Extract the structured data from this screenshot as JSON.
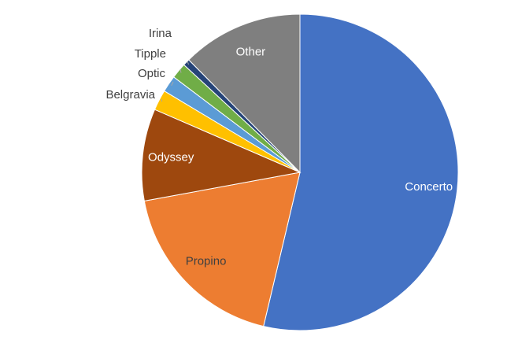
{
  "chart_data": {
    "type": "pie",
    "categories": [
      "Concerto",
      "Propino",
      "Odyssey",
      "Belgravia",
      "Optic",
      "Tipple",
      "Irina",
      "Other"
    ],
    "values": [
      53.7,
      18.4,
      9.4,
      2.1,
      1.7,
      1.6,
      0.7,
      12.4
    ],
    "colors": [
      "#4472c4",
      "#ed7d31",
      "#9e480e",
      "#ffc000",
      "#5b9bd5",
      "#70ad47",
      "#264478",
      "#7f7f7f"
    ]
  }
}
